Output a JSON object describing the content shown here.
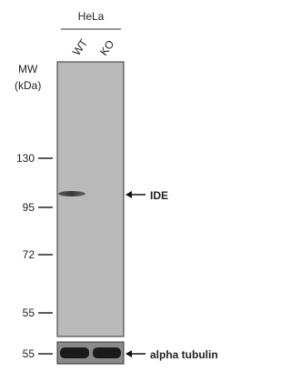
{
  "header": {
    "cell_line": "HeLa",
    "lanes": [
      "WT",
      "KO"
    ]
  },
  "mw_label": {
    "line1": "MW",
    "line2": "(kDa)"
  },
  "markers": [
    130,
    95,
    72,
    55
  ],
  "main_blot": {
    "target": "IDE"
  },
  "loading_blot": {
    "marker": 55,
    "target": "alpha tubulin"
  }
}
